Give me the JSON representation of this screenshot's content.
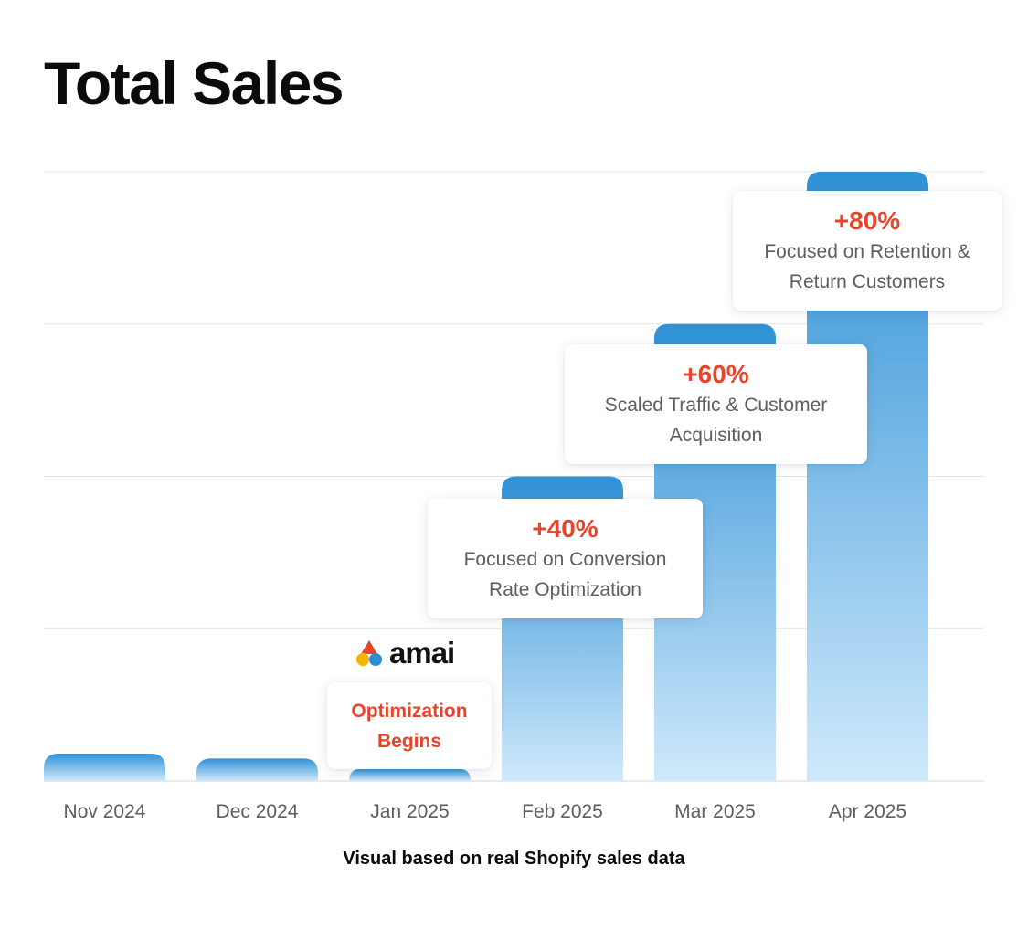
{
  "title": "Total Sales",
  "caption": "Visual based on real Shopify sales data",
  "logo": {
    "text": "amai",
    "colors": [
      "#e8442a",
      "#f5b400",
      "#2b8fd8"
    ]
  },
  "chart_data": {
    "type": "bar",
    "title": "Total Sales",
    "categories": [
      "Nov 2024",
      "Dec 2024",
      "Jan 2025",
      "Feb 2025",
      "Mar 2025",
      "Apr 2025"
    ],
    "values": [
      4.5,
      3.7,
      2.0,
      50,
      75,
      100
    ],
    "ylim": [
      0,
      100
    ],
    "grid": true,
    "colors": {
      "bar_top": "#2f91d6",
      "bar_bottom": "#cfe9fb",
      "accent": "#e8442a",
      "grid": "#e3e3e3"
    },
    "annotations": [
      {
        "category": "Jan 2025",
        "label": "",
        "text": "Optimization Begins",
        "lines": [
          "Optimization",
          "Begins"
        ]
      },
      {
        "category": "Feb 2025",
        "label": "+40%",
        "text": "Focused on Conversion Rate Optimization",
        "lines": [
          "Focused on Conversion",
          "Rate Optimization"
        ]
      },
      {
        "category": "Mar 2025",
        "label": "+60%",
        "text": "Scaled Traffic & Customer Acquisition",
        "lines": [
          "Scaled Traffic & Customer",
          "Acquisition"
        ]
      },
      {
        "category": "Apr 2025",
        "label": "+80%",
        "text": "Focused on Retention & Return Customers",
        "lines": [
          "Focused on Retention &",
          "Return Customers"
        ]
      }
    ]
  }
}
